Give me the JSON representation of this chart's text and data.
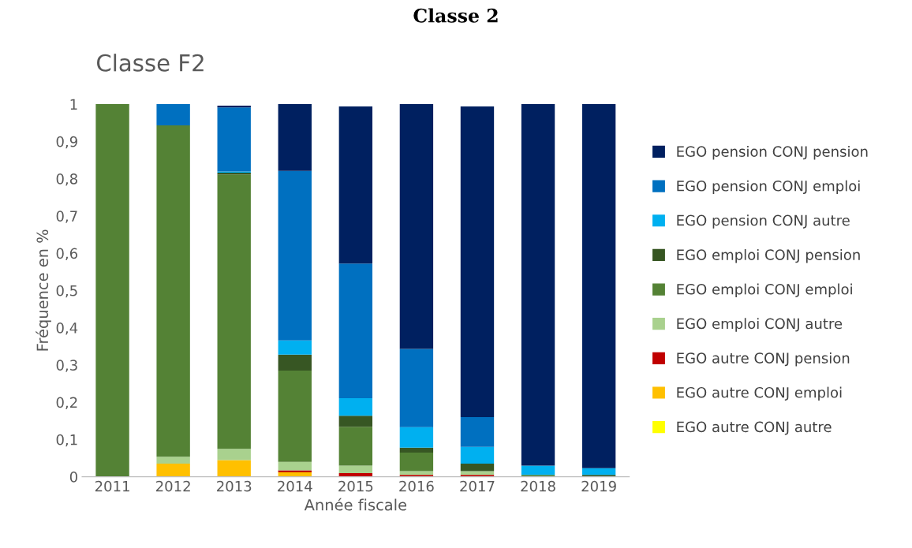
{
  "chart_data": {
    "type": "bar",
    "stacked": true,
    "title": "Classe 2",
    "subtitle": "Classe F2",
    "xlabel": "Année fiscale",
    "ylabel": "Fréquence en %",
    "categories": [
      "2011",
      "2012",
      "2013",
      "2014",
      "2015",
      "2016",
      "2017",
      "2018",
      "2019"
    ],
    "ylim": [
      0,
      1
    ],
    "yticks": [
      0,
      {
        "value": 0.1,
        "label": "0,1"
      },
      {
        "value": 0.2,
        "label": "0,2"
      },
      {
        "value": 0.3,
        "label": "0,3"
      },
      {
        "value": 0.4,
        "label": "0,4"
      },
      {
        "value": 0.5,
        "label": "0,5"
      },
      {
        "value": 0.6,
        "label": "0,6"
      },
      {
        "value": 0.7,
        "label": "0,7"
      },
      {
        "value": 0.8,
        "label": "0,8"
      },
      {
        "value": 0.9,
        "label": "0,9"
      },
      1
    ],
    "grid": false,
    "legend": "right",
    "series": [
      {
        "name": "EGO autre CONJ autre",
        "color": "#ffff00",
        "values": [
          0,
          0,
          0,
          0,
          0,
          0,
          0,
          0,
          0
        ]
      },
      {
        "name": "EGO autre CONJ emploi",
        "color": "#ffc000",
        "values": [
          0,
          0.035,
          0.045,
          0.012,
          0,
          0,
          0,
          0,
          0
        ]
      },
      {
        "name": "EGO autre CONJ pension",
        "color": "#c00000",
        "values": [
          0,
          0,
          0,
          0.005,
          0.01,
          0.005,
          0.005,
          0,
          0
        ]
      },
      {
        "name": "EGO emploi CONJ autre",
        "color": "#a9d18e",
        "values": [
          0,
          0.019,
          0.03,
          0.023,
          0.02,
          0.01,
          0.01,
          0,
          0
        ]
      },
      {
        "name": "EGO emploi CONJ emploi",
        "color": "#548235",
        "values": [
          1,
          0.889,
          0.736,
          0.245,
          0.104,
          0.05,
          0,
          0.005,
          0
        ]
      },
      {
        "name": "EGO emploi CONJ pension",
        "color": "#375623",
        "values": [
          0,
          0,
          0.005,
          0.043,
          0.03,
          0.013,
          0.02,
          0,
          0.005
        ]
      },
      {
        "name": "EGO pension CONJ autre",
        "color": "#00b0f0",
        "values": [
          0,
          0,
          0.003,
          0.038,
          0.047,
          0.055,
          0.045,
          0.025,
          0.018
        ]
      },
      {
        "name": "EGO pension CONJ emploi",
        "color": "#0070c0",
        "values": [
          0,
          0.057,
          0.172,
          0.455,
          0.361,
          0.21,
          0.08,
          0,
          0
        ]
      },
      {
        "name": "EGO pension CONJ pension",
        "color": "#002060",
        "values": [
          0,
          0,
          0.005,
          0.179,
          0.422,
          0.657,
          0.834,
          0.97,
          0.977
        ]
      }
    ]
  }
}
